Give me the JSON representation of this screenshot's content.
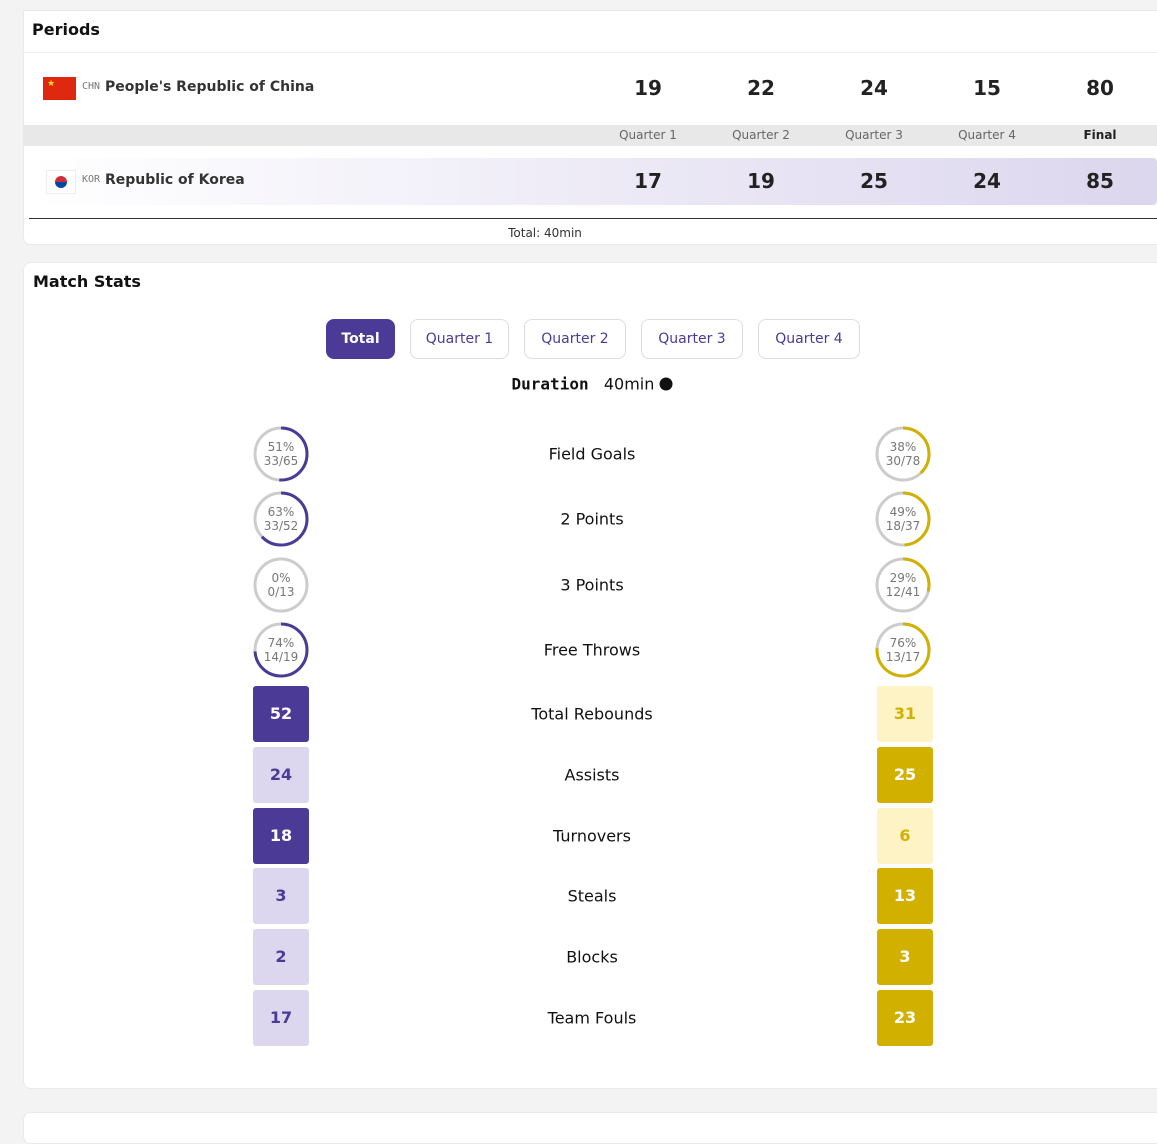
{
  "periods": {
    "title": "Periods",
    "teams": [
      {
        "code": "CHN",
        "name": "People's Republic of China",
        "scores": [
          19,
          22,
          24,
          15,
          80
        ]
      },
      {
        "code": "KOR",
        "name": "Republic of Korea",
        "scores": [
          17,
          19,
          25,
          24,
          85
        ]
      }
    ],
    "period_labels": [
      "Quarter 1",
      "Quarter 2",
      "Quarter 3",
      "Quarter 4",
      "Final"
    ],
    "total": "Total: 40min"
  },
  "match_stats": {
    "title": "Match Stats",
    "tabs": [
      "Total",
      "Quarter 1",
      "Quarter 2",
      "Quarter 3",
      "Quarter 4"
    ],
    "duration_label": "Duration",
    "duration": "40min",
    "shooting": [
      {
        "label": "Field Goals",
        "left": {
          "value": 51,
          "label": "51%",
          "ratio": "33/65"
        },
        "right": {
          "value": 38,
          "label": "38%",
          "ratio": "30/78"
        }
      },
      {
        "label": "2 Points",
        "left": {
          "value": 63,
          "label": "63%",
          "ratio": "33/52"
        },
        "right": {
          "value": 49,
          "label": "49%",
          "ratio": "18/37"
        }
      },
      {
        "label": "3 Points",
        "left": {
          "value": 0,
          "label": "0%",
          "ratio": "0/13"
        },
        "right": {
          "value": 29,
          "label": "29%",
          "ratio": "12/41"
        }
      },
      {
        "label": "Free Throws",
        "left": {
          "value": 74,
          "label": "74%",
          "ratio": "14/19"
        },
        "right": {
          "value": 76,
          "label": "76%",
          "ratio": "13/17"
        }
      }
    ],
    "counts": [
      {
        "label": "Total Rebounds",
        "left": 52,
        "right": 31
      },
      {
        "label": "Assists",
        "left": 24,
        "right": 25
      },
      {
        "label": "Turnovers",
        "left": 18,
        "right": 6
      },
      {
        "label": "Steals",
        "left": 3,
        "right": 13
      },
      {
        "label": "Blocks",
        "left": 2,
        "right": 3
      },
      {
        "label": "Team Fouls",
        "left": 17,
        "right": 23
      }
    ]
  }
}
